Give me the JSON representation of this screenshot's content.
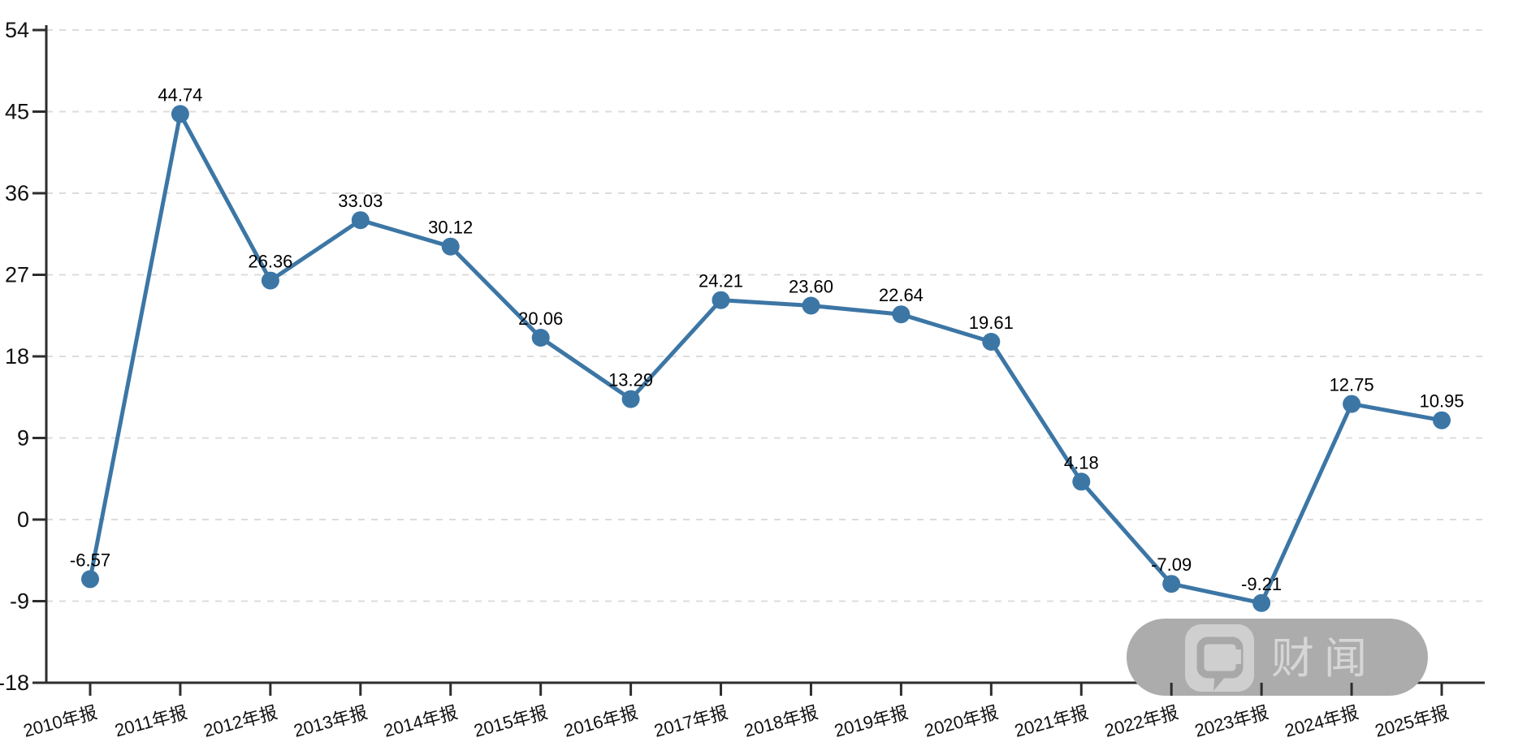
{
  "watermark": {
    "text": "财闻",
    "icon": "chat-bubble-icon"
  },
  "chart_data": {
    "type": "line",
    "title": "",
    "xlabel": "",
    "ylabel": "",
    "categories": [
      "2010年报",
      "2011年报",
      "2012年报",
      "2013年报",
      "2014年报",
      "2015年报",
      "2016年报",
      "2017年报",
      "2018年报",
      "2019年报",
      "2020年报",
      "2021年报",
      "2022年报",
      "2023年报",
      "2024年报",
      "2025年报"
    ],
    "values": [
      -6.57,
      44.74,
      26.36,
      33.03,
      30.12,
      20.06,
      13.29,
      24.21,
      23.6,
      22.64,
      19.61,
      4.18,
      -7.09,
      -9.21,
      12.75,
      10.95
    ],
    "value_labels": [
      "-6.57",
      "44.74",
      "26.36",
      "33.03",
      "30.12",
      "20.06",
      "13.29",
      "24.21",
      "23.60",
      "22.64",
      "19.61",
      "4.18",
      "-7.09",
      "-9.21",
      "12.75",
      "10.95"
    ],
    "yticks": [
      54,
      45,
      36,
      27,
      18,
      9,
      0,
      -9,
      -18
    ],
    "ylim": [
      -18,
      54
    ],
    "grid": "horizontal-dashed",
    "legend": "none",
    "line_color": "#3c76a5",
    "marker": "circle",
    "grid_color": "#dcdcdc",
    "axis_color": "#2d2d2d",
    "tick_label_color": "#111111",
    "value_label_color": "#000000"
  }
}
